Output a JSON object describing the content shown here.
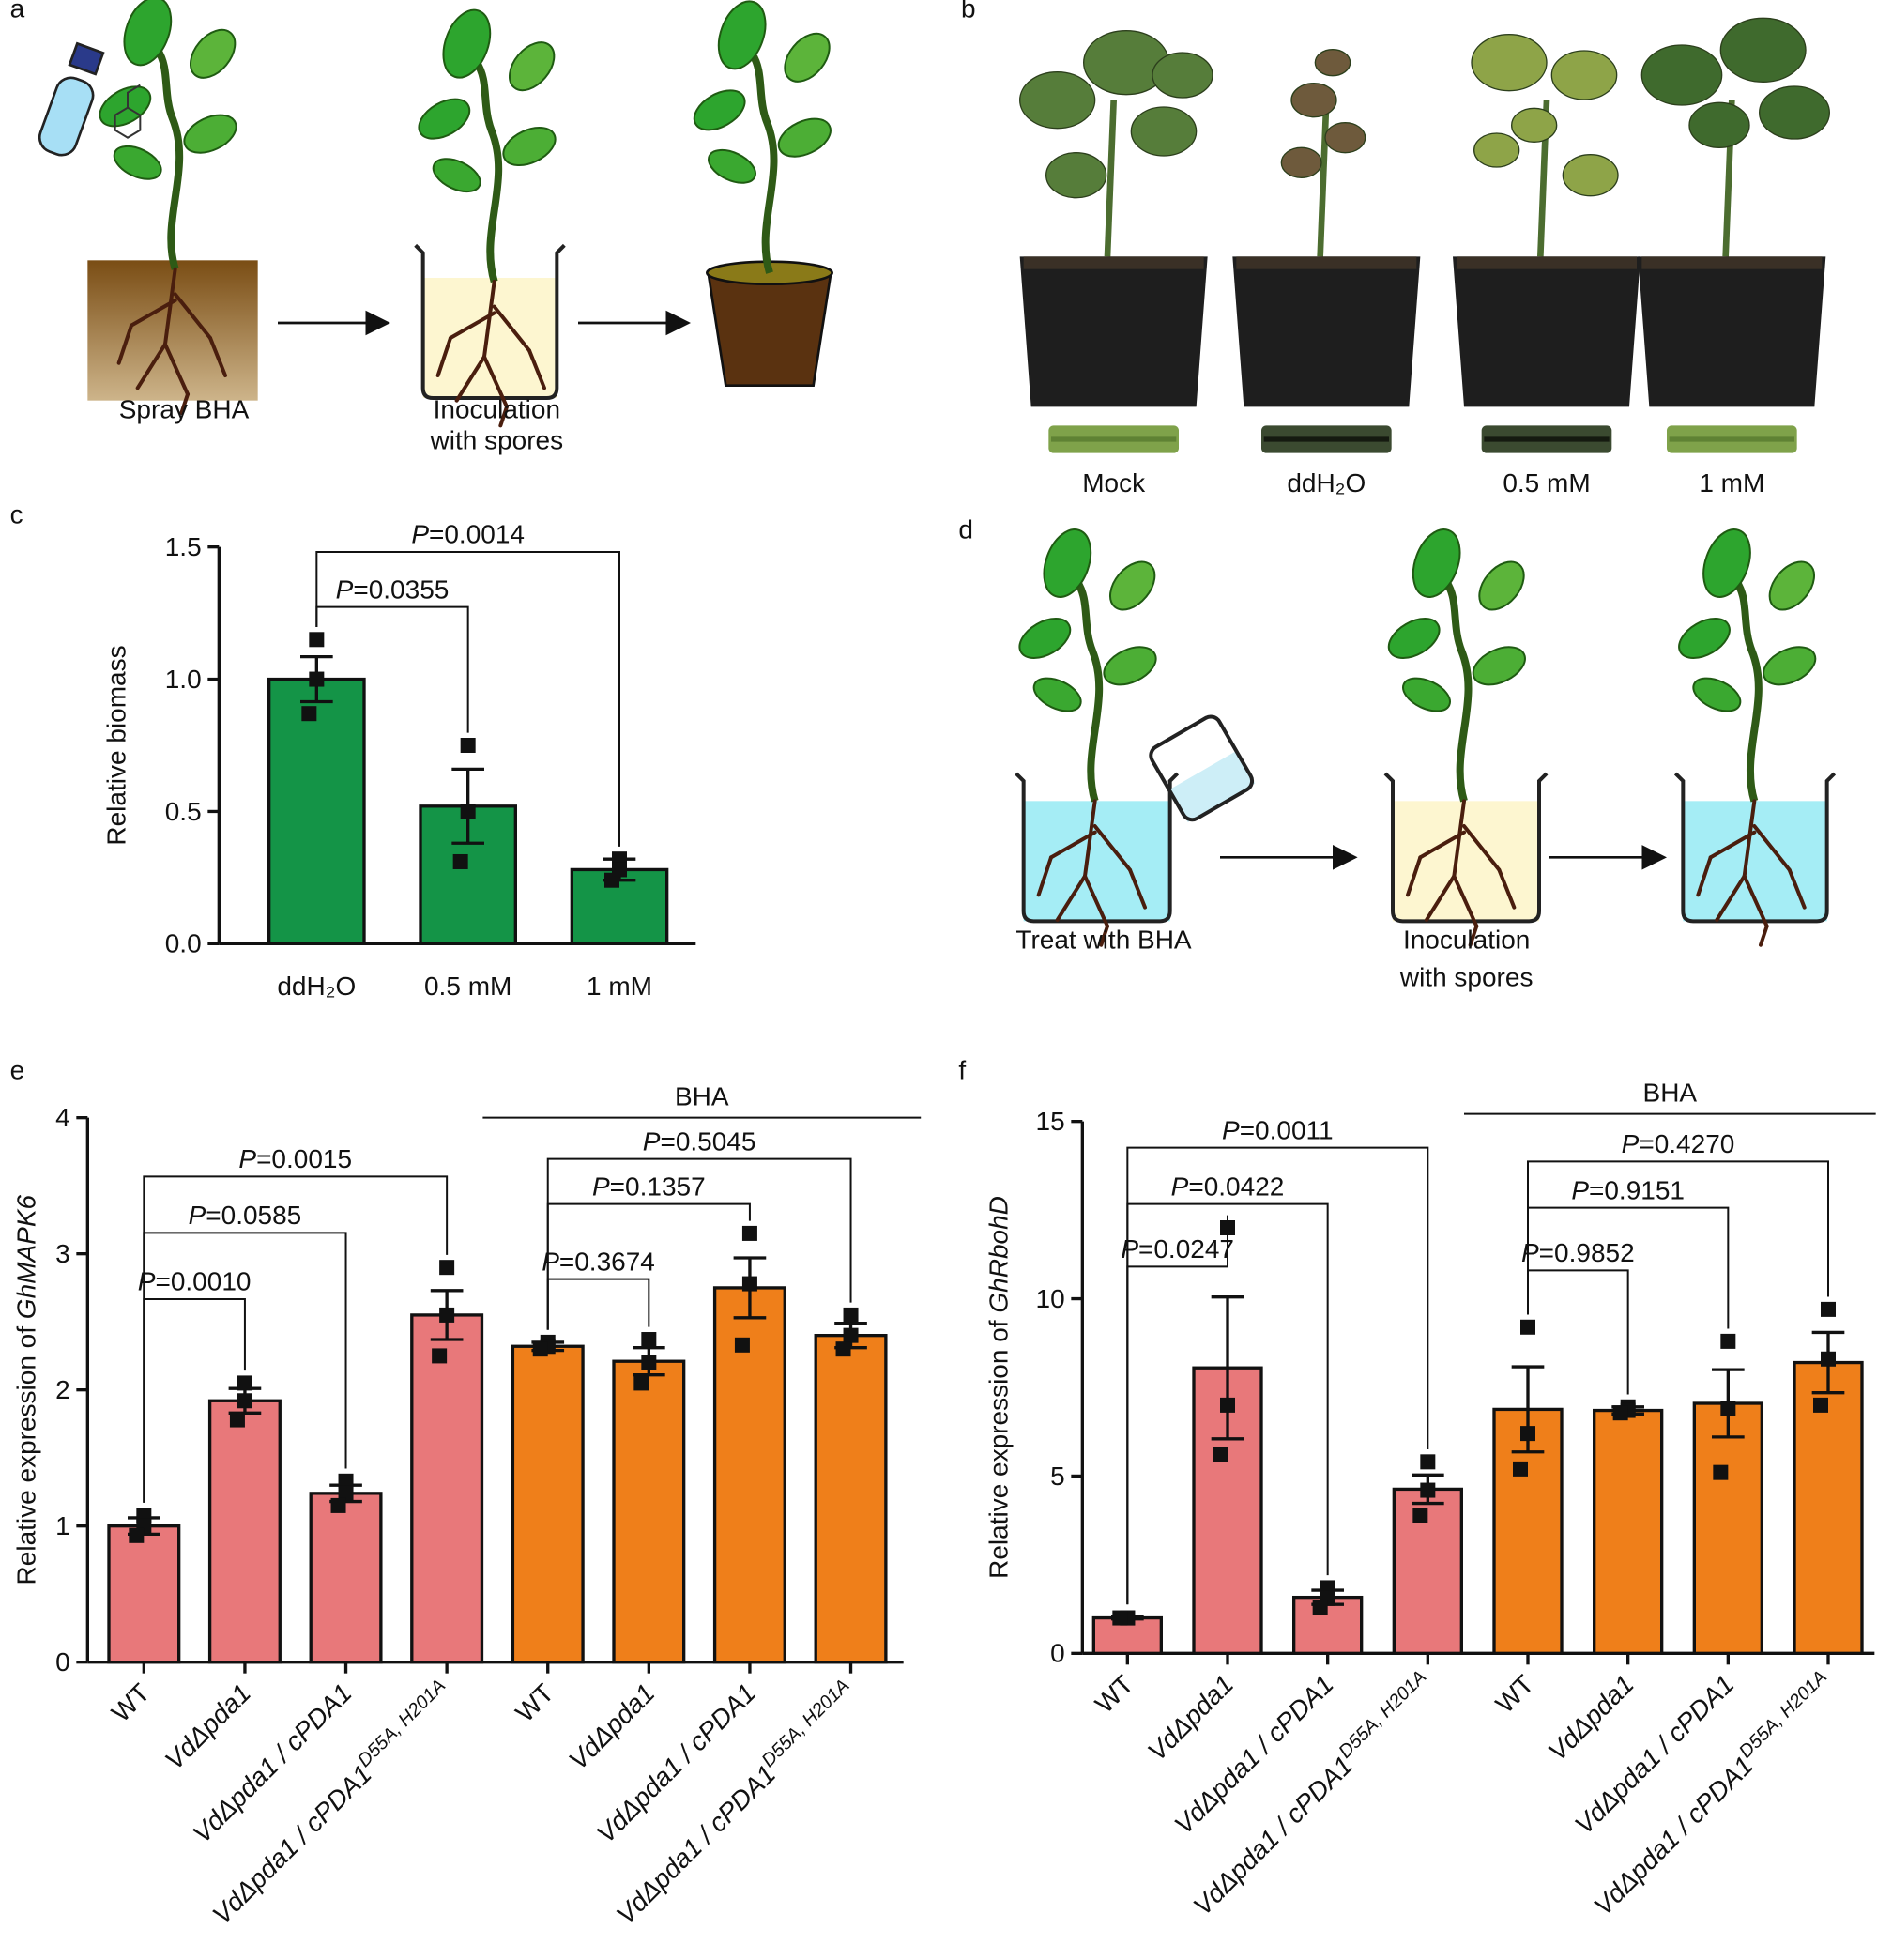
{
  "figure": {
    "panel_labels": [
      "a",
      "b",
      "c",
      "d",
      "e",
      "f"
    ],
    "panel_a": {
      "steps": [
        [
          "Spray BHA"
        ],
        [
          "Inoculation",
          "with spores"
        ]
      ]
    },
    "panel_b": {
      "labels": [
        "Mock",
        "ddH₂O",
        "0.5 mM",
        "1 mM"
      ]
    },
    "panel_d": {
      "steps": [
        [
          "Treat with BHA"
        ],
        [
          "Inoculation",
          "with spores"
        ]
      ]
    }
  },
  "chart_data": [
    {
      "type": "bar",
      "categories": [
        "ddH₂O",
        "0.5 mM",
        "1 mM"
      ],
      "values": [
        1.0,
        0.52,
        0.28
      ],
      "errors": [
        0.085,
        0.14,
        0.04
      ],
      "points": [
        [
          1.15,
          1.0,
          0.87
        ],
        [
          0.75,
          0.5,
          0.31
        ],
        [
          0.32,
          0.28,
          0.24
        ]
      ],
      "colors": [
        "#149447",
        "#149447",
        "#149447"
      ],
      "ylabel": {
        "text": "Relative biomass"
      },
      "ylim": [
        0,
        1.5
      ],
      "yticks": [
        {
          "value": 0,
          "label": "0.0"
        },
        {
          "value": 0.5,
          "label": "0.5"
        },
        {
          "value": 1,
          "label": "1.0"
        },
        {
          "value": 1.5,
          "label": "1.5"
        }
      ],
      "brackets": [
        {
          "from": 0,
          "to": 1,
          "label": "P=0.0355"
        },
        {
          "from": 0,
          "to": 2,
          "label": "P=0.0014"
        }
      ]
    },
    {
      "type": "bar",
      "categories": [
        "WT",
        "VdΔpda1",
        "VdΔpda1 / cPDA1",
        "VdΔpda1 / cPDA1",
        "WT",
        "VdΔpda1",
        "VdΔpda1 / cPDA1",
        "VdΔpda1 / cPDA1"
      ],
      "category_superscripts": [
        null,
        null,
        null,
        "D55A, H201A",
        null,
        null,
        null,
        "D55A, H201A"
      ],
      "category_italic": [
        false,
        true,
        true,
        true,
        false,
        true,
        true,
        true
      ],
      "values": [
        1.0,
        1.92,
        1.24,
        2.55,
        2.32,
        2.21,
        2.75,
        2.4
      ],
      "errors": [
        0.06,
        0.09,
        0.06,
        0.18,
        0.03,
        0.1,
        0.22,
        0.09
      ],
      "points": [
        [
          1.08,
          1.0,
          0.93
        ],
        [
          2.05,
          1.92,
          1.78
        ],
        [
          1.33,
          1.24,
          1.15
        ],
        [
          2.9,
          2.55,
          2.25
        ],
        [
          2.35,
          2.32,
          2.3
        ],
        [
          2.37,
          2.2,
          2.05
        ],
        [
          3.15,
          2.78,
          2.33
        ],
        [
          2.55,
          2.4,
          2.3
        ]
      ],
      "colors": [
        "#e8787a",
        "#e8787a",
        "#e8787a",
        "#e8787a",
        "#ef7f1a",
        "#ef7f1a",
        "#ef7f1a",
        "#ef7f1a"
      ],
      "ylabel": {
        "text": "Relative expression of",
        "gene": "GhMAPK6"
      },
      "ylim": [
        0,
        4
      ],
      "yticks": [
        0,
        1,
        2,
        3,
        4
      ],
      "group_label": {
        "text": "BHA",
        "from": 4,
        "to": 7
      },
      "brackets": [
        {
          "from": 0,
          "to": 1,
          "label": "P=0.0010"
        },
        {
          "from": 0,
          "to": 2,
          "label": "P=0.0585"
        },
        {
          "from": 0,
          "to": 3,
          "label": "P=0.0015"
        },
        {
          "from": 4,
          "to": 5,
          "label": "P=0.3674"
        },
        {
          "from": 4,
          "to": 6,
          "label": "P=0.1357"
        },
        {
          "from": 4,
          "to": 7,
          "label": "P=0.5045"
        }
      ]
    },
    {
      "type": "bar",
      "categories": [
        "WT",
        "VdΔpda1",
        "VdΔpda1 / cPDA1",
        "VdΔpda1 / cPDA1",
        "WT",
        "VdΔpda1",
        "VdΔpda1 / cPDA1",
        "VdΔpda1 / cPDA1"
      ],
      "category_superscripts": [
        null,
        null,
        null,
        "D55A, H201A",
        null,
        null,
        null,
        "D55A, H201A"
      ],
      "category_italic": [
        false,
        true,
        true,
        true,
        false,
        true,
        true,
        true
      ],
      "values": [
        1.0,
        8.05,
        1.58,
        4.63,
        6.88,
        6.85,
        7.05,
        8.2
      ],
      "errors": [
        0.03,
        2.0,
        0.2,
        0.4,
        1.2,
        0.1,
        0.95,
        0.85
      ],
      "points": [
        [
          1.0,
          1.0,
          1.0
        ],
        [
          12.0,
          7.0,
          5.6
        ],
        [
          1.85,
          1.55,
          1.3
        ],
        [
          5.4,
          4.6,
          3.9
        ],
        [
          9.2,
          6.2,
          5.2
        ],
        [
          6.95,
          6.85,
          6.78
        ],
        [
          8.8,
          6.9,
          5.1
        ],
        [
          9.7,
          8.3,
          7.0
        ]
      ],
      "colors": [
        "#e8787a",
        "#e8787a",
        "#e8787a",
        "#e8787a",
        "#ef7f1a",
        "#ef7f1a",
        "#ef7f1a",
        "#ef7f1a"
      ],
      "ylabel": {
        "text": "Relative expression of",
        "gene": "GhRbohD"
      },
      "ylim": [
        0,
        15
      ],
      "yticks": [
        0,
        5,
        10,
        15
      ],
      "group_label": {
        "text": "BHA",
        "from": 4,
        "to": 7
      },
      "brackets": [
        {
          "from": 0,
          "to": 1,
          "label": "P=0.0247"
        },
        {
          "from": 0,
          "to": 2,
          "label": "P=0.0422"
        },
        {
          "from": 0,
          "to": 3,
          "label": "P=0.0011"
        },
        {
          "from": 4,
          "to": 5,
          "label": "P=0.9852"
        },
        {
          "from": 4,
          "to": 6,
          "label": "P=0.9151"
        },
        {
          "from": 4,
          "to": 7,
          "label": "P=0.4270"
        }
      ]
    }
  ]
}
